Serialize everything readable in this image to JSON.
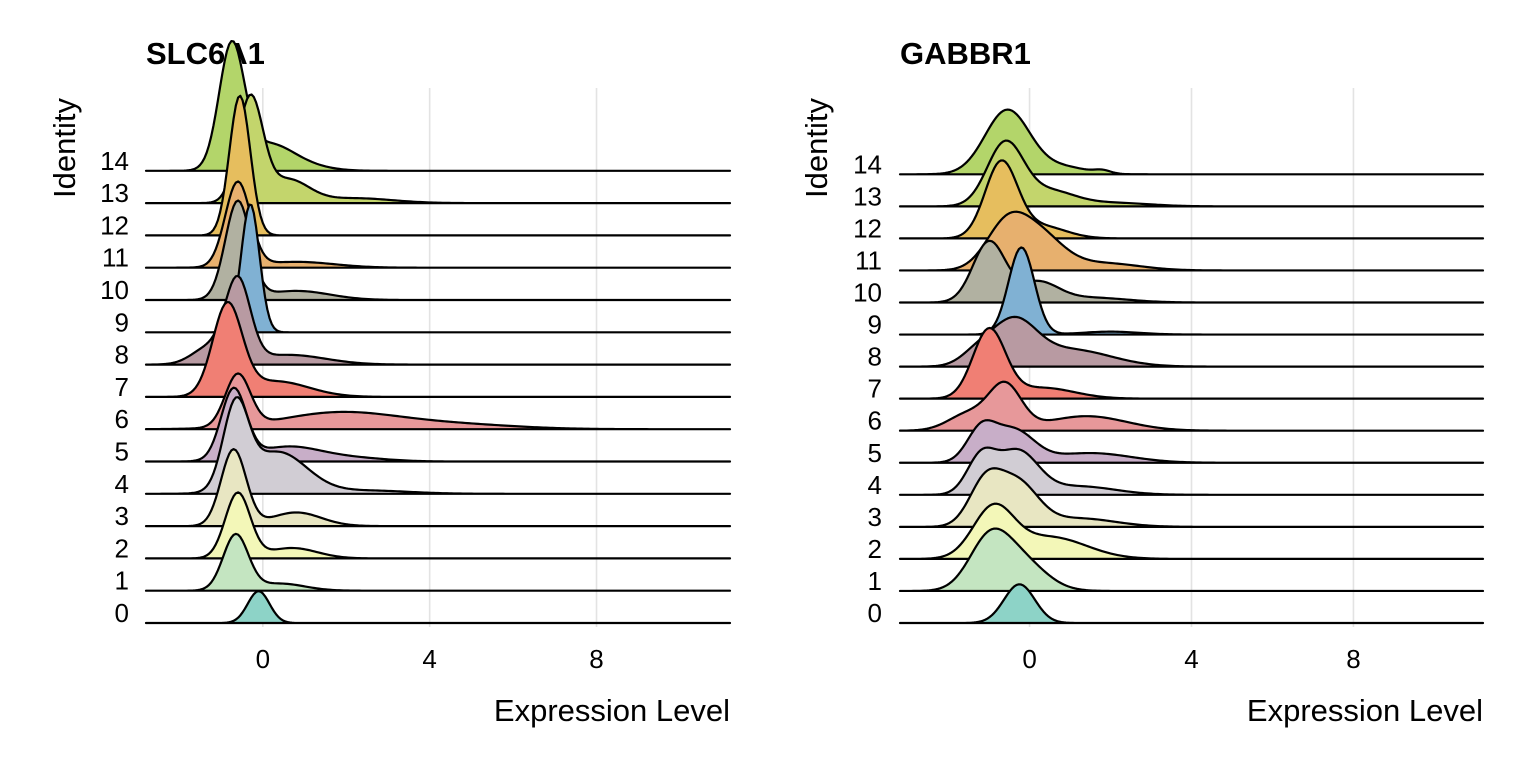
{
  "colors": {
    "0": "#8dd3c7",
    "1": "#c4e5c1",
    "2": "#f3f7b8",
    "3": "#e8e6c2",
    "4": "#d1cdd4",
    "5": "#c8aec8",
    "6": "#e7989a",
    "7": "#f07f74",
    "8": "#b89aa2",
    "9": "#80b1d3",
    "10": "#b1b1a1",
    "11": "#e7b06e",
    "12": "#e6be5e",
    "13": "#c3d56c",
    "14": "#b3d56a"
  },
  "chart_data": [
    {
      "type": "ridgeline",
      "title": "SLC6A1",
      "xlabel": "Expression Level",
      "ylabel": "Identity",
      "xlim": [
        -2.8,
        11.2
      ],
      "x_ticks": [
        0,
        4,
        8
      ],
      "categories": [
        "0",
        "1",
        "2",
        "3",
        "4",
        "5",
        "6",
        "7",
        "8",
        "9",
        "10",
        "11",
        "12",
        "13",
        "14"
      ],
      "grid": true,
      "series": [
        {
          "name": "0",
          "components": [
            {
              "mu": -0.1,
              "sd": 0.26,
              "h": 0.98
            }
          ]
        },
        {
          "name": "1",
          "components": [
            {
              "mu": -0.65,
              "sd": 0.3,
              "h": 1.7
            },
            {
              "mu": 0.4,
              "sd": 0.6,
              "h": 0.22
            }
          ]
        },
        {
          "name": "2",
          "components": [
            {
              "mu": -0.6,
              "sd": 0.3,
              "h": 2.0
            },
            {
              "mu": 0.7,
              "sd": 0.6,
              "h": 0.32
            }
          ]
        },
        {
          "name": "3",
          "components": [
            {
              "mu": -0.7,
              "sd": 0.3,
              "h": 2.35
            },
            {
              "mu": 0.8,
              "sd": 0.6,
              "h": 0.42
            }
          ]
        },
        {
          "name": "4",
          "components": [
            {
              "mu": -0.65,
              "sd": 0.3,
              "h": 2.5
            },
            {
              "mu": 0.35,
              "sd": 0.7,
              "h": 1.28
            },
            {
              "mu": 2.5,
              "sd": 1.0,
              "h": 0.1
            }
          ]
        },
        {
          "name": "5",
          "components": [
            {
              "mu": -0.7,
              "sd": 0.3,
              "h": 2.15
            },
            {
              "mu": 0.6,
              "sd": 0.8,
              "h": 0.45
            },
            {
              "mu": 2.2,
              "sd": 0.8,
              "h": 0.1
            }
          ]
        },
        {
          "name": "6",
          "components": [
            {
              "mu": -0.6,
              "sd": 0.3,
              "h": 1.6
            },
            {
              "mu": 1.8,
              "sd": 1.4,
              "h": 0.5
            },
            {
              "mu": 4.5,
              "sd": 1.5,
              "h": 0.15
            }
          ]
        },
        {
          "name": "7",
          "components": [
            {
              "mu": -0.85,
              "sd": 0.35,
              "h": 2.75
            },
            {
              "mu": 0.3,
              "sd": 0.8,
              "h": 0.48
            }
          ]
        },
        {
          "name": "8",
          "components": [
            {
              "mu": -0.6,
              "sd": 0.3,
              "h": 2.5
            },
            {
              "mu": -1.3,
              "sd": 0.4,
              "h": 0.5
            },
            {
              "mu": 0.6,
              "sd": 0.9,
              "h": 0.3
            }
          ]
        },
        {
          "name": "9",
          "components": [
            {
              "mu": -0.3,
              "sd": 0.22,
              "h": 3.95
            }
          ]
        },
        {
          "name": "10",
          "components": [
            {
              "mu": -0.6,
              "sd": 0.3,
              "h": 3.0
            },
            {
              "mu": 0.8,
              "sd": 0.8,
              "h": 0.28
            }
          ]
        },
        {
          "name": "11",
          "components": [
            {
              "mu": -0.6,
              "sd": 0.3,
              "h": 2.6
            },
            {
              "mu": 0.8,
              "sd": 0.9,
              "h": 0.18
            }
          ]
        },
        {
          "name": "12",
          "components": [
            {
              "mu": -0.55,
              "sd": 0.25,
              "h": 4.3
            }
          ]
        },
        {
          "name": "13",
          "components": [
            {
              "mu": -0.3,
              "sd": 0.3,
              "h": 3.2
            },
            {
              "mu": 0.6,
              "sd": 0.5,
              "h": 0.7
            },
            {
              "mu": 2.2,
              "sd": 0.9,
              "h": 0.15
            }
          ]
        },
        {
          "name": "14",
          "components": [
            {
              "mu": -0.75,
              "sd": 0.3,
              "h": 3.7
            },
            {
              "mu": 0.1,
              "sd": 0.6,
              "h": 0.8
            },
            {
              "mu": 1.0,
              "sd": 0.6,
              "h": 0.12
            }
          ]
        }
      ]
    },
    {
      "type": "ridgeline",
      "title": "GABBR1",
      "xlabel": "Expression Level",
      "ylabel": "Identity",
      "xlim": [
        -3.2,
        11.2
      ],
      "x_ticks": [
        0,
        4,
        8
      ],
      "categories": [
        "0",
        "1",
        "2",
        "3",
        "4",
        "5",
        "6",
        "7",
        "8",
        "9",
        "10",
        "11",
        "12",
        "13",
        "14"
      ],
      "grid": true,
      "series": [
        {
          "name": "0",
          "components": [
            {
              "mu": -0.25,
              "sd": 0.38,
              "h": 1.6
            }
          ]
        },
        {
          "name": "1",
          "components": [
            {
              "mu": -1.0,
              "sd": 0.5,
              "h": 2.0
            },
            {
              "mu": -0.2,
              "sd": 0.6,
              "h": 1.2
            }
          ]
        },
        {
          "name": "2",
          "components": [
            {
              "mu": -0.9,
              "sd": 0.5,
              "h": 2.0
            },
            {
              "mu": 0.5,
              "sd": 0.9,
              "h": 0.9
            }
          ]
        },
        {
          "name": "3",
          "components": [
            {
              "mu": -1.1,
              "sd": 0.4,
              "h": 1.75
            },
            {
              "mu": -0.3,
              "sd": 0.5,
              "h": 1.75
            },
            {
              "mu": 1.2,
              "sd": 0.9,
              "h": 0.35
            }
          ]
        },
        {
          "name": "4",
          "components": [
            {
              "mu": -1.2,
              "sd": 0.35,
              "h": 1.5
            },
            {
              "mu": -0.3,
              "sd": 0.5,
              "h": 1.75
            },
            {
              "mu": 1.2,
              "sd": 0.9,
              "h": 0.35
            }
          ]
        },
        {
          "name": "5",
          "components": [
            {
              "mu": -1.2,
              "sd": 0.35,
              "h": 1.3
            },
            {
              "mu": -0.4,
              "sd": 0.5,
              "h": 1.3
            },
            {
              "mu": 1.5,
              "sd": 1.0,
              "h": 0.4
            }
          ]
        },
        {
          "name": "6",
          "components": [
            {
              "mu": -0.6,
              "sd": 0.4,
              "h": 1.8
            },
            {
              "mu": -1.5,
              "sd": 0.5,
              "h": 0.7
            },
            {
              "mu": 1.4,
              "sd": 1.0,
              "h": 0.6
            }
          ]
        },
        {
          "name": "7",
          "components": [
            {
              "mu": -1.0,
              "sd": 0.4,
              "h": 2.8
            },
            {
              "mu": 0.3,
              "sd": 0.8,
              "h": 0.45
            }
          ]
        },
        {
          "name": "8",
          "components": [
            {
              "mu": -0.4,
              "sd": 0.55,
              "h": 1.75
            },
            {
              "mu": 1.0,
              "sd": 1.0,
              "h": 0.7
            },
            {
              "mu": -1.3,
              "sd": 0.4,
              "h": 0.5
            }
          ]
        },
        {
          "name": "9",
          "components": [
            {
              "mu": -0.2,
              "sd": 0.32,
              "h": 3.6
            },
            {
              "mu": 2.0,
              "sd": 0.7,
              "h": 0.12
            }
          ]
        },
        {
          "name": "10",
          "components": [
            {
              "mu": -1.0,
              "sd": 0.4,
              "h": 2.5
            },
            {
              "mu": 0.2,
              "sd": 0.5,
              "h": 0.8
            },
            {
              "mu": 1.5,
              "sd": 0.9,
              "h": 0.2
            }
          ]
        },
        {
          "name": "11",
          "components": [
            {
              "mu": -0.6,
              "sd": 0.5,
              "h": 1.65
            },
            {
              "mu": 0.2,
              "sd": 0.6,
              "h": 1.45
            },
            {
              "mu": 1.8,
              "sd": 0.9,
              "h": 0.3
            }
          ]
        },
        {
          "name": "12",
          "components": [
            {
              "mu": -0.7,
              "sd": 0.4,
              "h": 3.1
            },
            {
              "mu": 0.3,
              "sd": 0.6,
              "h": 0.5
            }
          ]
        },
        {
          "name": "13",
          "components": [
            {
              "mu": -0.6,
              "sd": 0.45,
              "h": 2.6
            },
            {
              "mu": 0.5,
              "sd": 0.6,
              "h": 0.6
            },
            {
              "mu": 2.0,
              "sd": 0.9,
              "h": 0.15
            }
          ]
        },
        {
          "name": "14",
          "components": [
            {
              "mu": -0.55,
              "sd": 0.55,
              "h": 2.65
            },
            {
              "mu": 0.8,
              "sd": 0.6,
              "h": 0.3
            },
            {
              "mu": 1.8,
              "sd": 0.2,
              "h": 0.12
            }
          ]
        }
      ]
    }
  ]
}
